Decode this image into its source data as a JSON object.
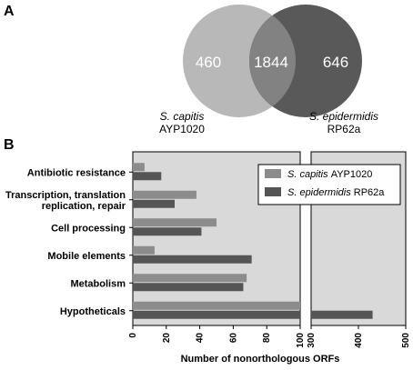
{
  "chart_data": [
    {
      "type": "venn",
      "panel_label": "A",
      "sets": [
        {
          "name_italic": "S. capitis",
          "name_rest": "AYP1020",
          "only": 460,
          "color": "#b8b8b8"
        },
        {
          "name_italic": "S. epidermidis",
          "name_rest": "RP62a",
          "only": 646,
          "color": "#595959"
        }
      ],
      "intersection": 1844,
      "intersection_color": "#828282"
    },
    {
      "type": "bar",
      "orientation": "horizontal",
      "panel_label": "B",
      "categories": [
        "Antibiotic resistance",
        [
          "Transcription, translation",
          "replication, repair"
        ],
        "Cell processing",
        "Mobile elements",
        "Metabolism",
        "Hypotheticals"
      ],
      "series": [
        {
          "name_italic": "S. capitis",
          "name_rest": "AYP1020",
          "color": "#8c8c8c",
          "values": [
            7,
            38,
            50,
            13,
            68,
            280
          ]
        },
        {
          "name_italic": "S. epidermidis",
          "name_rest": "RP62a",
          "color": "#555555",
          "values": [
            17,
            25,
            41,
            71,
            66,
            430
          ]
        }
      ],
      "xlabel": "Number of nonorthologous ORFs",
      "axis_break": {
        "after": 100,
        "resume": 300
      },
      "xticks_left": [
        0,
        20,
        40,
        60,
        80,
        100
      ],
      "xticks_right": [
        300,
        400,
        500
      ],
      "xlim": [
        0,
        500
      ],
      "background": "#d9d9d9"
    }
  ]
}
